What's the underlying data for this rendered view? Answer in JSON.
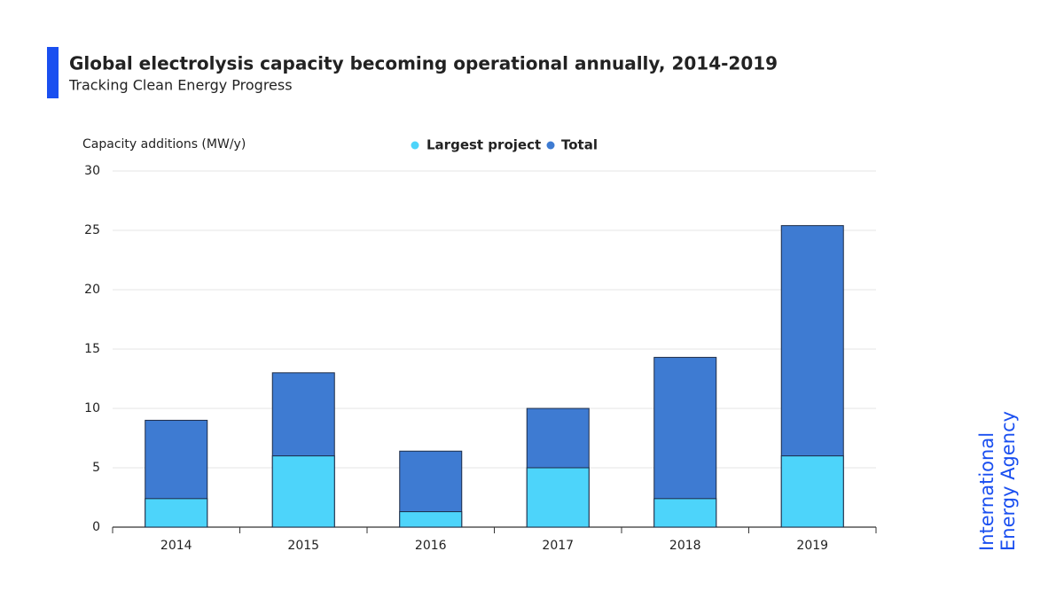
{
  "chart_data": {
    "type": "bar",
    "title": "Global electrolysis capacity becoming operational annually, 2014-2019",
    "subtitle": "Tracking Clean Energy Progress",
    "y_label": "Capacity additions (MW/y)",
    "categories": [
      "2014",
      "2015",
      "2016",
      "2017",
      "2018",
      "2019"
    ],
    "series": [
      {
        "name": "Largest project",
        "color": "#4dd4fa",
        "values": [
          2.4,
          6.0,
          1.3,
          5.0,
          2.4,
          6.0
        ]
      },
      {
        "name": "Total",
        "color": "#3e7bd2",
        "values": [
          9.0,
          13.0,
          6.4,
          10.0,
          14.3,
          25.4
        ]
      }
    ],
    "ylim": [
      0,
      30
    ],
    "yticks": [
      0,
      5,
      10,
      15,
      20,
      25,
      30
    ],
    "grid": true
  },
  "logo": {
    "lines": [
      "International",
      "Energy Agency"
    ]
  }
}
